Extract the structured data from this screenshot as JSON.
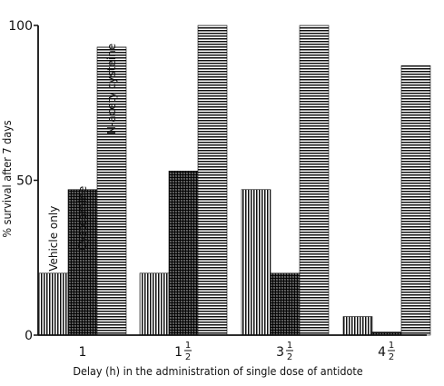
{
  "chart_data": {
    "type": "bar",
    "categories": [
      "1",
      "1½",
      "3½",
      "4½"
    ],
    "category_labels": [
      {
        "whole": "1",
        "num": "",
        "den": ""
      },
      {
        "whole": "1",
        "num": "1",
        "den": "2"
      },
      {
        "whole": "3",
        "num": "1",
        "den": "2"
      },
      {
        "whole": "4",
        "num": "1",
        "den": "2"
      }
    ],
    "series": [
      {
        "name": "Vehicle only",
        "pattern": "vertical-lines",
        "values": [
          20,
          20,
          47,
          6
        ]
      },
      {
        "name": "Cysteamine",
        "pattern": "dense-grid",
        "values": [
          47,
          53,
          20,
          1
        ]
      },
      {
        "name": "N-acetylcysteine",
        "pattern": "horizontal-lines",
        "values": [
          93,
          100,
          100,
          87
        ]
      }
    ],
    "ylim": [
      0,
      100
    ],
    "yticks": [
      0,
      50,
      100
    ],
    "xlabel": "Delay (h) in the administration of single dose of antidote",
    "ylabel": "% survival after 7 days",
    "grid": false,
    "legend": "none (series names written on first group of bars)",
    "colors": {
      "ink": "#111111",
      "background": "#ffffff"
    }
  }
}
